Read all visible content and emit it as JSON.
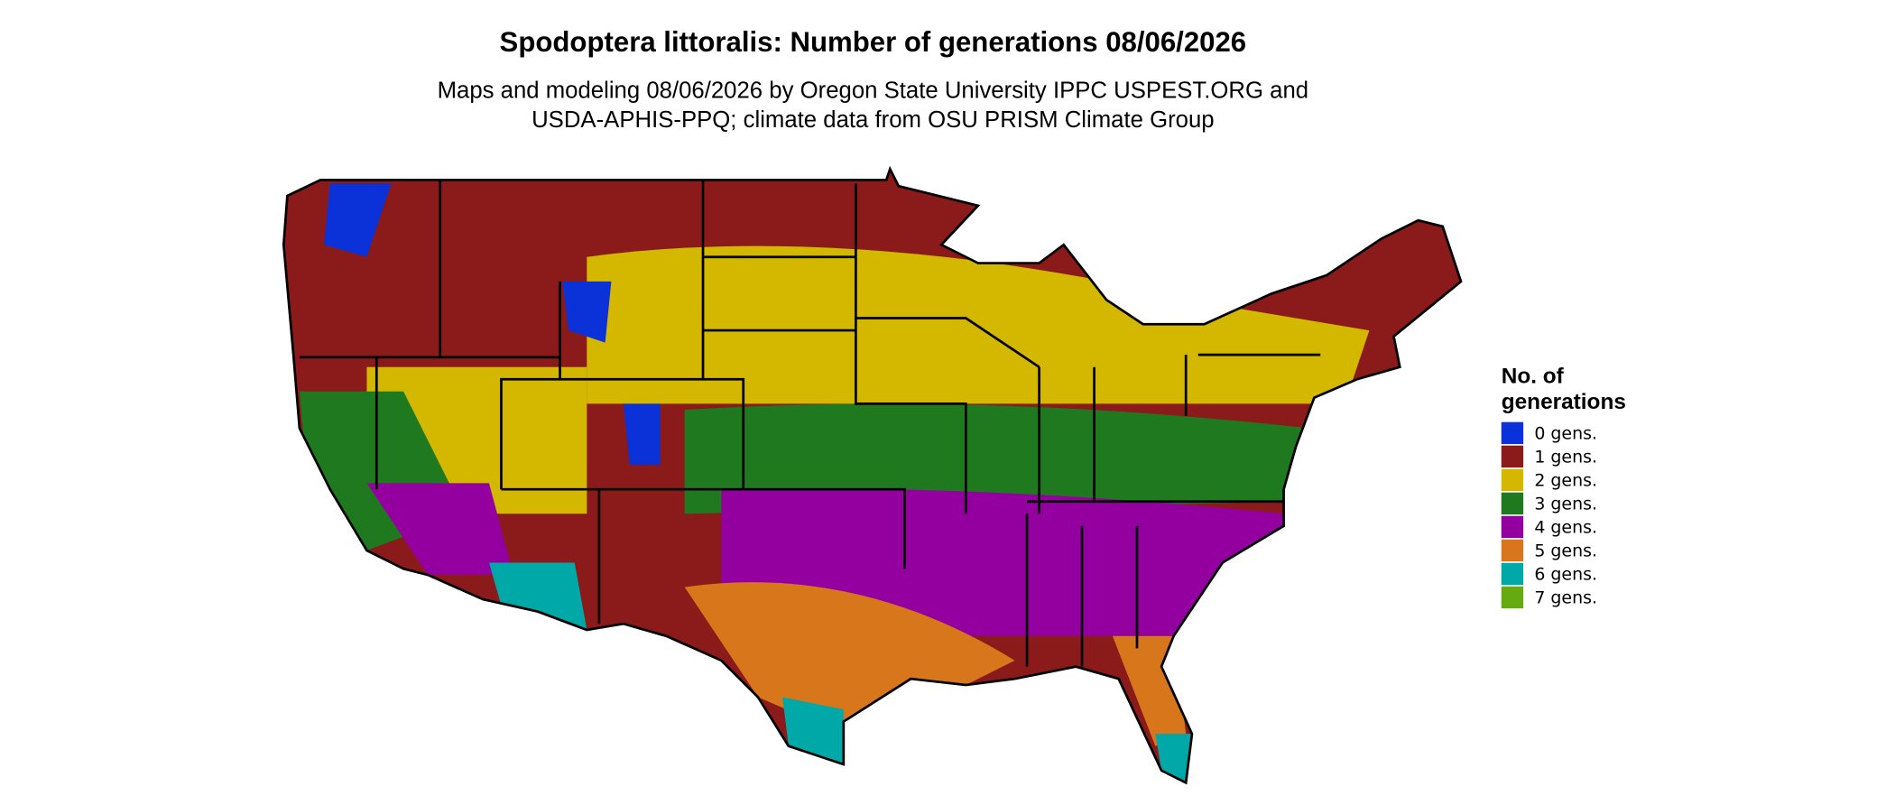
{
  "title": "Spodoptera littoralis: Number of generations 08/06/2026",
  "subtitle": [
    "Maps and modeling 08/06/2026 by Oregon State University IPPC USPEST.ORG and",
    "USDA-APHIS-PPQ; climate data from OSU PRISM Climate Group"
  ],
  "legend": {
    "title": [
      "No. of",
      "generations"
    ],
    "items": [
      {
        "label": "0 gens.",
        "color": "#0a32d8"
      },
      {
        "label": "1 gens.",
        "color": "#8b1a1a"
      },
      {
        "label": "2 gens.",
        "color": "#d4b800"
      },
      {
        "label": "3 gens.",
        "color": "#1f7a1f"
      },
      {
        "label": "4 gens.",
        "color": "#9400a0"
      },
      {
        "label": "5 gens.",
        "color": "#d7761a"
      },
      {
        "label": "6 gens.",
        "color": "#00a8a8"
      },
      {
        "label": "7 gens.",
        "color": "#66aa11"
      }
    ]
  }
}
